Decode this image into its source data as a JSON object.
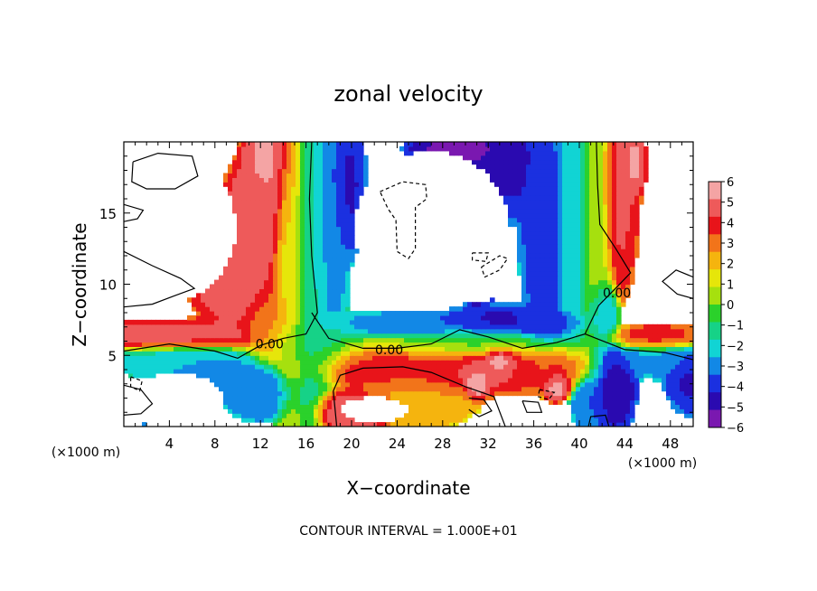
{
  "chart_data": {
    "type": "heatmap",
    "title": "zonal velocity",
    "xlabel": "X−coordinate",
    "ylabel": "Z−coordinate",
    "x_unit_left": "(×1000 m)",
    "x_unit_right": "(×1000 m)",
    "footer": "CONTOUR INTERVAL = 1.000E+01",
    "xlim": [
      0,
      50
    ],
    "ylim": [
      0,
      20
    ],
    "xticks": [
      4,
      8,
      12,
      16,
      20,
      24,
      28,
      32,
      36,
      40,
      44,
      48
    ],
    "yticks": [
      5,
      10,
      15
    ],
    "colorbar": {
      "range": [
        -6,
        6
      ],
      "labels": [
        "6",
        "5",
        "4",
        "3",
        "2",
        "1",
        "0",
        "−1",
        "−2",
        "−3",
        "−4",
        "−5",
        "−6"
      ],
      "colors": [
        "#f4a4a4",
        "#ee5a5a",
        "#e8141a",
        "#f2741a",
        "#f5b40e",
        "#e6e60a",
        "#a6e00e",
        "#2bd12b",
        "#16d287",
        "#11d4d4",
        "#1288e6",
        "#1b30e0",
        "#2a0ab0",
        "#7a18b0"
      ]
    },
    "contour_labels": [
      {
        "text": "0.00",
        "x": 12.8,
        "z": 5.8
      },
      {
        "text": "0.00",
        "x": 23.3,
        "z": 5.4
      },
      {
        "text": "0.00",
        "x": 43.3,
        "z": 9.4
      }
    ],
    "blobs": [
      {
        "x": 13,
        "z": 19,
        "v": 5.5,
        "sx": 1.5,
        "sz": 2.5
      },
      {
        "x": 12,
        "z": 15,
        "v": 5.0,
        "sx": 2.0,
        "sz": 2.5
      },
      {
        "x": 10,
        "z": 10.5,
        "v": 5.0,
        "sx": 2.5,
        "sz": 2.2
      },
      {
        "x": 4,
        "z": 6.3,
        "v": 5.0,
        "sx": 5.0,
        "sz": 0.7
      },
      {
        "x": 13,
        "z": 7.5,
        "v": 3.0,
        "sx": 1.5,
        "sz": 2.0
      },
      {
        "x": 14.5,
        "z": 12,
        "v": 1.0,
        "sx": 0.9,
        "sz": 8.0
      },
      {
        "x": 16.5,
        "z": 12,
        "v": -1.5,
        "sx": 1.0,
        "sz": 8.0
      },
      {
        "x": 18,
        "z": 14,
        "v": -3.0,
        "sx": 1.0,
        "sz": 6.0
      },
      {
        "x": 19.5,
        "z": 17,
        "v": -4.5,
        "sx": 1.0,
        "sz": 3.0
      },
      {
        "x": 17,
        "z": 6,
        "v": -1.0,
        "sx": 3.0,
        "sz": 1.2
      },
      {
        "x": 5,
        "z": 4.8,
        "v": -2.5,
        "sx": 4.0,
        "sz": 0.8
      },
      {
        "x": 8,
        "z": 3.5,
        "v": -3.0,
        "sx": 3.0,
        "sz": 1.0
      },
      {
        "x": 12,
        "z": 2.5,
        "v": -3.5,
        "sx": 2.0,
        "sz": 1.2
      },
      {
        "x": 24,
        "z": 4.5,
        "v": 4.0,
        "sx": 5.0,
        "sz": 1.2
      },
      {
        "x": 31,
        "z": 4.0,
        "v": 4.5,
        "sx": 4.0,
        "sz": 1.0
      },
      {
        "x": 37,
        "z": 4.0,
        "v": 3.5,
        "sx": 3.0,
        "sz": 1.0
      },
      {
        "x": 26,
        "z": 2.0,
        "v": 2.5,
        "sx": 3.0,
        "sz": 1.2
      },
      {
        "x": 33,
        "z": 4.5,
        "v": 6.5,
        "sx": 1.0,
        "sz": 0.8
      },
      {
        "x": 31,
        "z": 3.3,
        "v": 6.5,
        "sx": 0.8,
        "sz": 0.8
      },
      {
        "x": 38,
        "z": 3.0,
        "v": 6.0,
        "sx": 0.8,
        "sz": 0.7
      },
      {
        "x": 28,
        "z": 5.8,
        "v": -0.5,
        "sx": 6.0,
        "sz": 0.7
      },
      {
        "x": 25,
        "z": 7.0,
        "v": -3.5,
        "sx": 5.0,
        "sz": 0.6
      },
      {
        "x": 33,
        "z": 7.5,
        "v": -4.5,
        "sx": 3.0,
        "sz": 0.6
      },
      {
        "x": 37,
        "z": 7.3,
        "v": -4.0,
        "sx": 2.0,
        "sz": 0.6
      },
      {
        "x": 31,
        "z": 9.2,
        "v": -5.5,
        "sx": 0.8,
        "sz": 0.4
      },
      {
        "x": 30,
        "z": 19.5,
        "v": -5.5,
        "sx": 3.0,
        "sz": 0.8
      },
      {
        "x": 34,
        "z": 18,
        "v": -4.5,
        "sx": 2.0,
        "sz": 2.0
      },
      {
        "x": 37,
        "z": 14,
        "v": -4.0,
        "sx": 1.3,
        "sz": 5.0
      },
      {
        "x": 39.5,
        "z": 15,
        "v": -2.0,
        "sx": 1.0,
        "sz": 6.0
      },
      {
        "x": 41.5,
        "z": 14,
        "v": 0.5,
        "sx": 0.9,
        "sz": 6.0
      },
      {
        "x": 43.5,
        "z": 16,
        "v": 4.5,
        "sx": 1.0,
        "sz": 4.0
      },
      {
        "x": 44.5,
        "z": 18.5,
        "v": 5.5,
        "sx": 0.8,
        "sz": 1.5
      },
      {
        "x": 42,
        "z": 8.0,
        "v": -3.0,
        "sx": 0.8,
        "sz": 1.5
      },
      {
        "x": 43,
        "z": 3.0,
        "v": -5.0,
        "sx": 1.2,
        "sz": 2.0
      },
      {
        "x": 41,
        "z": 2.0,
        "v": -3.5,
        "sx": 1.0,
        "sz": 1.5
      },
      {
        "x": 47,
        "z": 4.8,
        "v": -3.0,
        "sx": 3.0,
        "sz": 0.8
      },
      {
        "x": 47,
        "z": 6.2,
        "v": 4.0,
        "sx": 3.0,
        "sz": 0.6
      },
      {
        "x": 50,
        "z": 3.5,
        "v": -4.5,
        "sx": 1.5,
        "sz": 1.5
      },
      {
        "x": 20,
        "z": 1.0,
        "v": 5.0,
        "sx": 2.0,
        "sz": 1.0
      },
      {
        "x": 3.5,
        "z": 0.5,
        "v": -5.0,
        "sx": 1.0,
        "sz": 0.5
      }
    ],
    "white_regions": [
      {
        "x": 4.5,
        "z": 14,
        "sx": 5.5,
        "sz": 5.2
      },
      {
        "x": 4.5,
        "z": 1.8,
        "sx": 4.5,
        "sz": 2.0
      },
      {
        "x": 27,
        "z": 14,
        "sx": 7.0,
        "sz": 5.5
      },
      {
        "x": 31,
        "z": 11.5,
        "sx": 3.5,
        "sz": 2.8
      },
      {
        "x": 48,
        "z": 12,
        "sx": 2.5,
        "sz": 4.5
      },
      {
        "x": 22,
        "z": 1.2,
        "sx": 3.0,
        "sz": 0.9
      }
    ],
    "solid_contours": [
      [
        [
          0,
          5.3
        ],
        [
          4,
          5.8
        ],
        [
          8,
          5.3
        ],
        [
          10,
          4.8
        ],
        [
          12,
          5.7
        ],
        [
          14,
          6.2
        ],
        [
          16,
          6.5
        ],
        [
          17,
          8
        ],
        [
          16.5,
          12
        ],
        [
          16.3,
          16
        ],
        [
          16.5,
          20
        ]
      ],
      [
        [
          16.5,
          8
        ],
        [
          18,
          6.2
        ],
        [
          21,
          5.5
        ],
        [
          24,
          5.5
        ],
        [
          27,
          5.8
        ],
        [
          29.5,
          6.8
        ],
        [
          32,
          6.3
        ],
        [
          35,
          5.5
        ],
        [
          38,
          5.9
        ],
        [
          40.5,
          6.5
        ],
        [
          41.7,
          8.5
        ],
        [
          43.3,
          9.8
        ],
        [
          44.5,
          10.8
        ],
        [
          43.2,
          12.5
        ],
        [
          41.8,
          14.2
        ],
        [
          41.6,
          17
        ],
        [
          41.5,
          20
        ]
      ],
      [
        [
          40.5,
          6.5
        ],
        [
          44,
          5.4
        ],
        [
          47.5,
          5.2
        ],
        [
          50,
          4.7
        ]
      ],
      [
        [
          18.7,
          0
        ],
        [
          18.4,
          2.5
        ],
        [
          19,
          3.6
        ],
        [
          21,
          4.1
        ],
        [
          24.5,
          4.2
        ],
        [
          27,
          3.8
        ],
        [
          30,
          2.8
        ],
        [
          32.5,
          2.1
        ],
        [
          33.5,
          0
        ]
      ],
      [
        [
          40.8,
          0
        ],
        [
          41.0,
          0.7
        ],
        [
          42.3,
          0.8
        ],
        [
          42.6,
          0
        ]
      ],
      [
        [
          0.8,
          18.6
        ],
        [
          3,
          19.2
        ],
        [
          6,
          19.0
        ],
        [
          6.5,
          17.6
        ],
        [
          4.5,
          16.7
        ],
        [
          2,
          16.7
        ],
        [
          0.7,
          17.2
        ],
        [
          0.8,
          18.6
        ]
      ],
      [
        [
          0,
          15.6
        ],
        [
          1.7,
          15.2
        ],
        [
          1.2,
          14.6
        ],
        [
          0,
          14.4
        ]
      ],
      [
        [
          0,
          12.3
        ],
        [
          2.5,
          11.3
        ],
        [
          5,
          10.4
        ],
        [
          6.2,
          9.7
        ],
        [
          4.5,
          9.2
        ],
        [
          2.5,
          8.6
        ],
        [
          0,
          8.4
        ]
      ],
      [
        [
          50,
          10.5
        ],
        [
          48.5,
          11.0
        ],
        [
          47.3,
          10.2
        ],
        [
          48.6,
          9.3
        ],
        [
          50,
          9.0
        ]
      ],
      [
        [
          30.3,
          2.0
        ],
        [
          31.6,
          1.9
        ],
        [
          32.3,
          1.1
        ],
        [
          31.2,
          0.7
        ],
        [
          30.3,
          1.2
        ]
      ],
      [
        [
          35.0,
          1.8
        ],
        [
          36.4,
          1.7
        ],
        [
          36.7,
          1.0
        ],
        [
          35.4,
          1.0
        ],
        [
          35.0,
          1.8
        ]
      ],
      [
        [
          0,
          2.9
        ],
        [
          1.5,
          2.6
        ],
        [
          2.5,
          1.6
        ],
        [
          1.5,
          0.9
        ],
        [
          0,
          0.8
        ]
      ]
    ],
    "dashed_contours": [
      [
        [
          22.5,
          16.5
        ],
        [
          24.5,
          17.2
        ],
        [
          26.5,
          17.0
        ],
        [
          26.6,
          16.0
        ],
        [
          25.6,
          15.4
        ],
        [
          25.6,
          12.5
        ],
        [
          25.0,
          11.8
        ],
        [
          24.0,
          12.3
        ],
        [
          23.9,
          14.5
        ],
        [
          23.2,
          15.3
        ],
        [
          22.5,
          16.5
        ]
      ],
      [
        [
          30.6,
          12.2
        ],
        [
          32.0,
          12.2
        ],
        [
          31.8,
          11.6
        ],
        [
          30.6,
          11.7
        ],
        [
          30.6,
          12.2
        ]
      ],
      [
        [
          31.4,
          11.2
        ],
        [
          33.0,
          12.0
        ],
        [
          33.7,
          11.8
        ],
        [
          33.0,
          11.0
        ],
        [
          31.7,
          10.5
        ],
        [
          31.4,
          11.2
        ]
      ],
      [
        [
          0.6,
          3.5
        ],
        [
          1.6,
          3.2
        ],
        [
          1.4,
          2.5
        ],
        [
          0.6,
          2.8
        ],
        [
          0.6,
          3.5
        ]
      ],
      [
        [
          36.5,
          2.6
        ],
        [
          37.8,
          2.4
        ],
        [
          37.3,
          1.9
        ],
        [
          36.4,
          2.1
        ],
        [
          36.5,
          2.6
        ]
      ]
    ]
  }
}
